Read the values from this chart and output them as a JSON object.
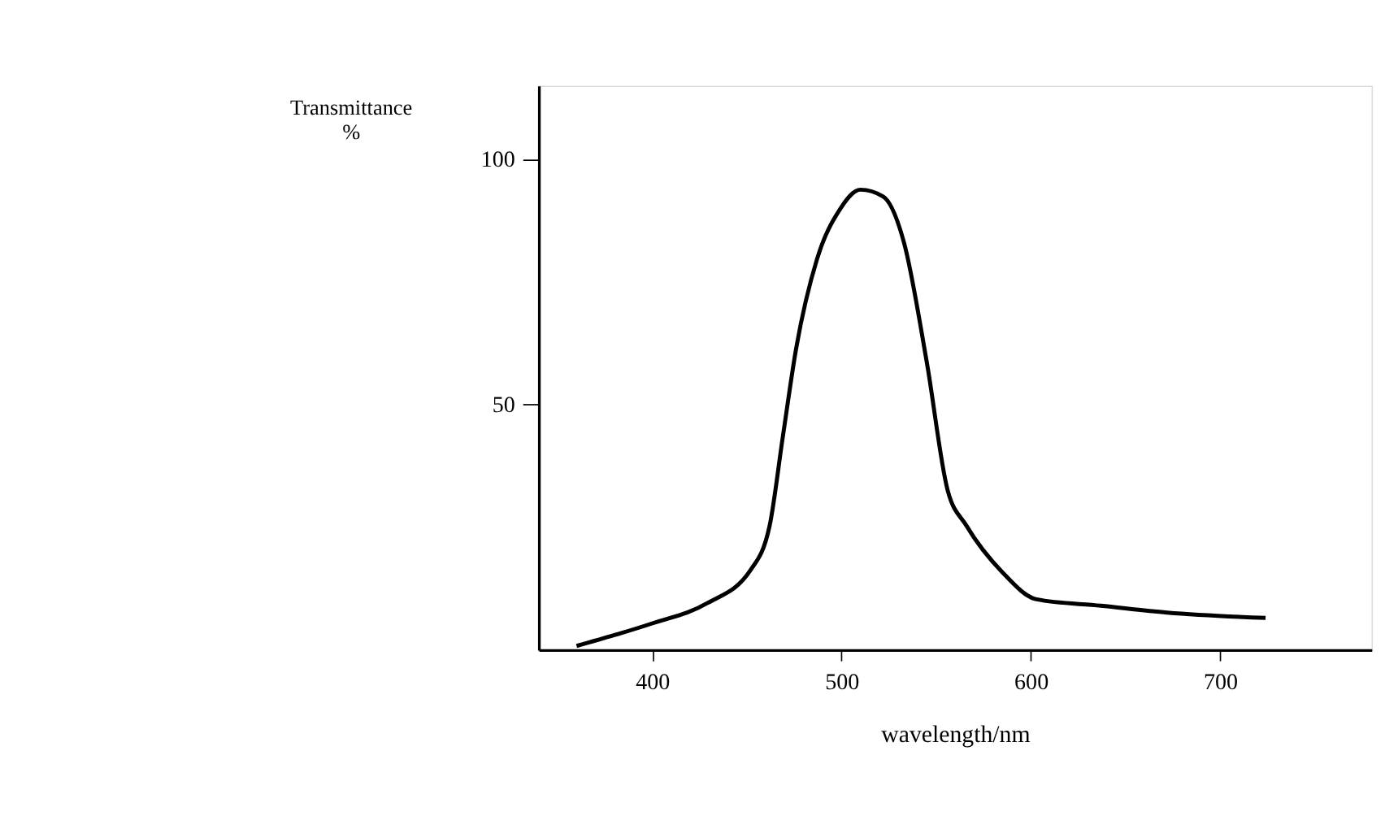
{
  "chart_data": {
    "type": "line",
    "xlabel": "wavelength/nm",
    "ylabel": "Transmittance\n%",
    "x": [
      360,
      380,
      400,
      429,
      452,
      462,
      469,
      476,
      487,
      499,
      510,
      522,
      533,
      545,
      556,
      566,
      585,
      603,
      637,
      672,
      724
    ],
    "series": [
      {
        "color": "#000000",
        "values": [
          0.8,
          3,
          5.4,
          9.5,
          16.3,
          25.3,
          43.5,
          61.4,
          79.6,
          89.7,
          93.8,
          92.4,
          83,
          58.7,
          32.6,
          25.3,
          15.8,
          10.3,
          9,
          7.6,
          6.5
        ]
      }
    ],
    "xlim": [
      340,
      780
    ],
    "ylim": [
      0,
      115
    ],
    "xticks": [
      400,
      500,
      600,
      700
    ],
    "yticks": [
      50,
      100
    ],
    "grid": false,
    "marker": "none",
    "line_style": "solid"
  }
}
